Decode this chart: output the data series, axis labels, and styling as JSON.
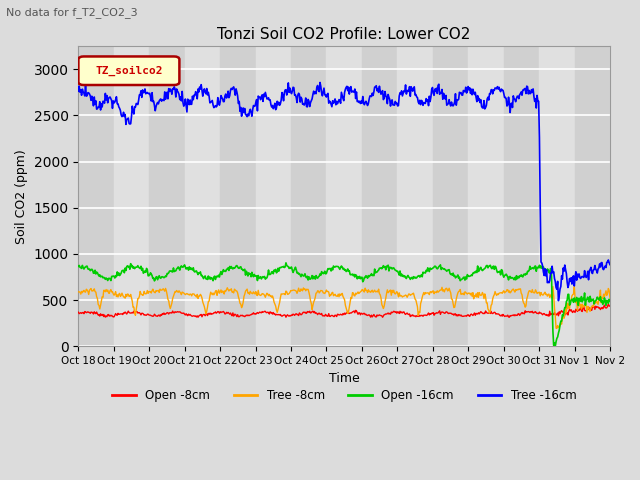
{
  "title": "Tonzi Soil CO2 Profile: Lower CO2",
  "subtitle": "No data for f_T2_CO2_3",
  "ylabel": "Soil CO2 (ppm)",
  "xlabel": "Time",
  "ylim": [
    0,
    3250
  ],
  "yticks": [
    0,
    500,
    1000,
    1500,
    2000,
    2500,
    3000
  ],
  "x_tick_labels": [
    "Oct 18",
    "Oct 19",
    "Oct 20",
    "Oct 21",
    "Oct 22",
    "Oct 23",
    "Oct 24",
    "Oct 25",
    "Oct 26",
    "Oct 27",
    "Oct 28",
    "Oct 29",
    "Oct 30",
    "Oct 31",
    "Nov 1",
    "Nov 2"
  ],
  "legend_label": "TZ_soilco2",
  "legend_entries": [
    "Open -8cm",
    "Tree -8cm",
    "Open -16cm",
    "Tree -16cm"
  ],
  "legend_colors": [
    "#ff0000",
    "#ffa500",
    "#00cc00",
    "#0000ff"
  ],
  "bg_color": "#dcdcdc",
  "plot_bg_color": "#dcdcdc",
  "grid_color": "#ffffff",
  "n_points": 672
}
